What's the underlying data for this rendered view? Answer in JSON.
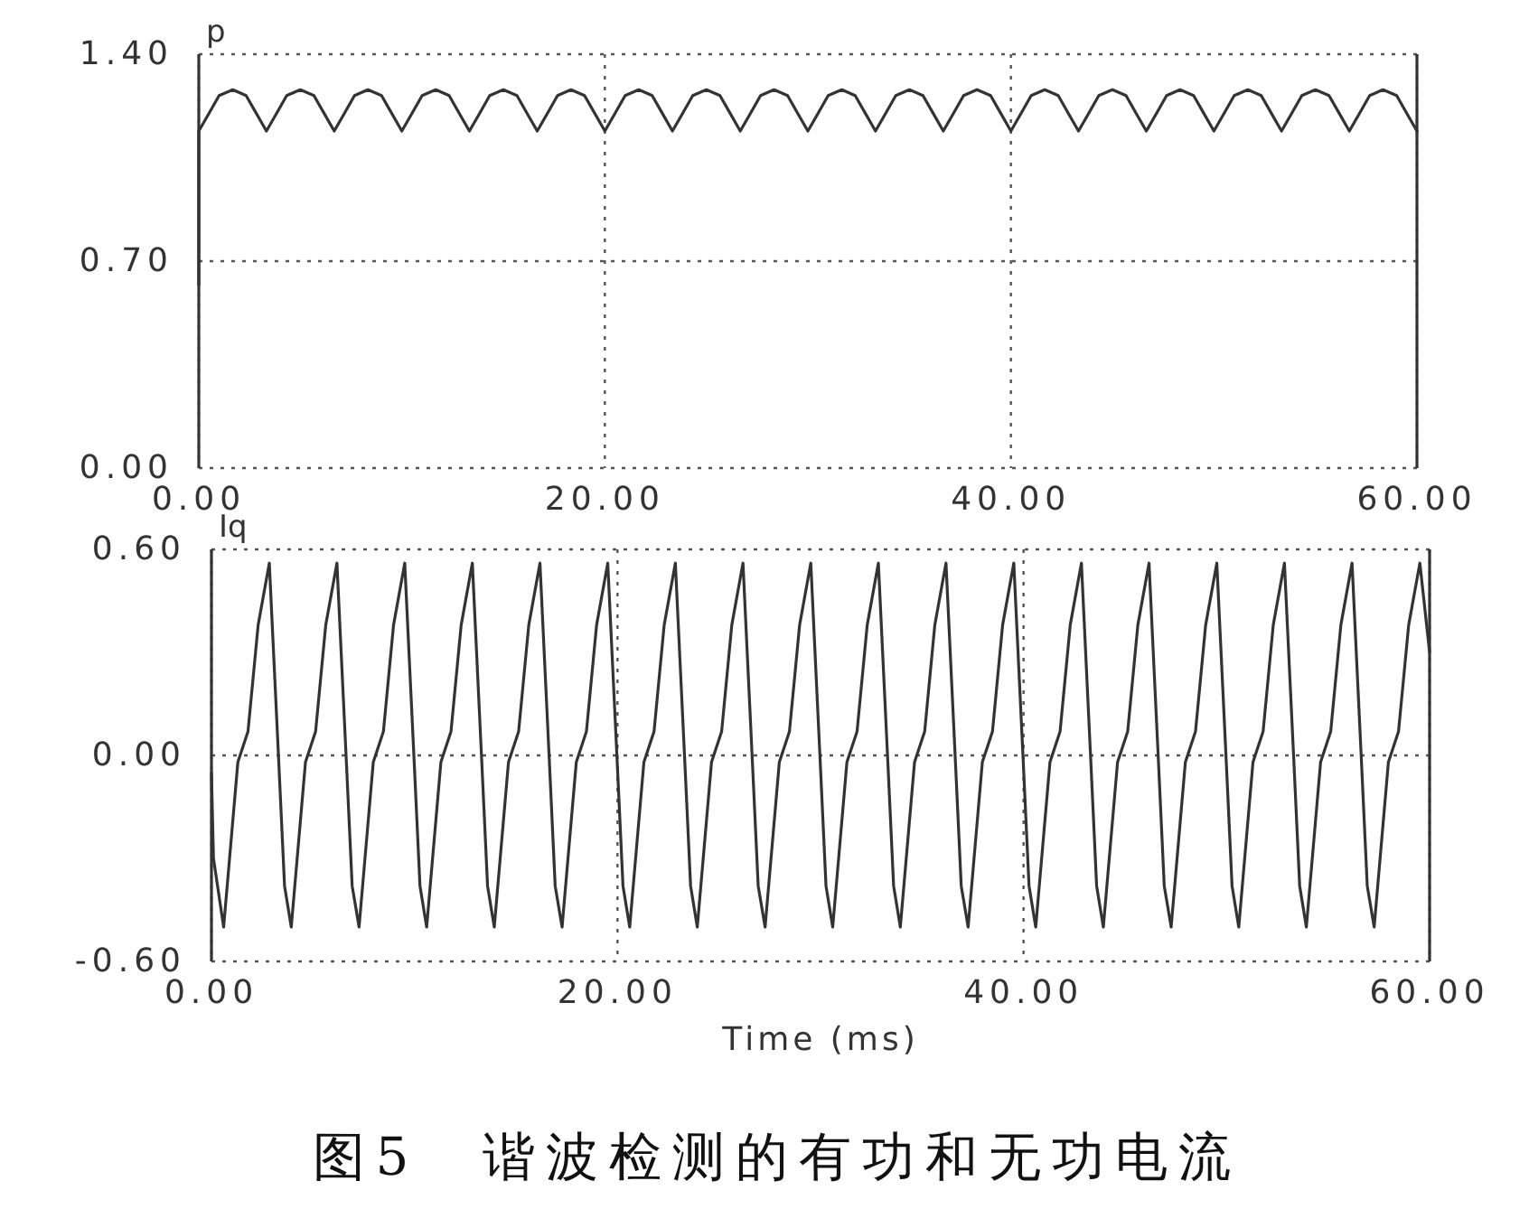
{
  "chart_data": [
    {
      "type": "line",
      "ylabel": "p",
      "color": "#333333",
      "grid": true,
      "xlim": [
        0,
        60
      ],
      "ylim": [
        0,
        1.4
      ],
      "xticks": [
        {
          "value": 0,
          "label": "0.00"
        },
        {
          "value": 20,
          "label": "20.00"
        },
        {
          "value": 40,
          "label": "40.00"
        },
        {
          "value": 60,
          "label": "60.00"
        }
      ],
      "yticks": [
        {
          "value": 0,
          "label": "0.00"
        },
        {
          "value": 0.7,
          "label": "0.70"
        },
        {
          "value": 1.4,
          "label": "1.40"
        }
      ],
      "x": [
        0,
        0,
        0.5,
        1,
        1.67,
        2.33,
        2.83,
        3.33,
        3.83,
        4.33,
        5,
        5.67,
        6.17,
        6.67,
        7.17,
        7.67,
        8.33,
        9,
        9.5,
        10,
        10.5,
        11,
        11.67,
        12.33,
        12.83,
        13.33,
        13.83,
        14.33,
        15,
        15.67,
        16.17,
        16.67,
        17.17,
        17.67,
        18.33,
        19,
        19.5,
        20,
        20.5,
        21,
        21.67,
        22.33,
        22.83,
        23.33,
        23.83,
        24.33,
        25,
        25.67,
        26.17,
        26.67,
        27.17,
        27.67,
        28.33,
        29,
        29.5,
        30,
        30.5,
        31,
        31.67,
        32.33,
        32.83,
        33.33,
        33.83,
        34.33,
        35,
        35.67,
        36.17,
        36.67,
        37.17,
        37.67,
        38.33,
        39,
        39.5,
        40,
        40.5,
        41,
        41.67,
        42.33,
        42.83,
        43.33,
        43.83,
        44.33,
        45,
        45.67,
        46.17,
        46.67,
        47.17,
        47.67,
        48.33,
        49,
        49.5,
        50,
        50.5,
        51,
        51.67,
        52.33,
        52.83,
        53.33,
        53.83,
        54.33,
        55,
        55.67,
        56.17,
        56.67,
        57.17,
        57.67,
        58.33,
        59,
        59.5,
        60
      ],
      "values": [
        0.62,
        1.14,
        1.2,
        1.26,
        1.28,
        1.26,
        1.2,
        1.14,
        1.2,
        1.26,
        1.28,
        1.26,
        1.2,
        1.14,
        1.2,
        1.26,
        1.28,
        1.26,
        1.2,
        1.14,
        1.2,
        1.26,
        1.28,
        1.26,
        1.2,
        1.14,
        1.2,
        1.26,
        1.28,
        1.26,
        1.2,
        1.14,
        1.2,
        1.26,
        1.28,
        1.26,
        1.2,
        1.14,
        1.2,
        1.26,
        1.28,
        1.26,
        1.2,
        1.14,
        1.2,
        1.26,
        1.28,
        1.26,
        1.2,
        1.14,
        1.2,
        1.26,
        1.28,
        1.26,
        1.2,
        1.14,
        1.2,
        1.26,
        1.28,
        1.26,
        1.2,
        1.14,
        1.2,
        1.26,
        1.28,
        1.26,
        1.2,
        1.14,
        1.2,
        1.26,
        1.28,
        1.26,
        1.2,
        1.14,
        1.2,
        1.26,
        1.28,
        1.26,
        1.2,
        1.14,
        1.2,
        1.26,
        1.28,
        1.26,
        1.2,
        1.14,
        1.2,
        1.26,
        1.28,
        1.26,
        1.2,
        1.14,
        1.2,
        1.26,
        1.28,
        1.26,
        1.2,
        1.14,
        1.2,
        1.26,
        1.28,
        1.26,
        1.2,
        1.14,
        1.2,
        1.26,
        1.28,
        1.26,
        1.2,
        1.14
      ]
    },
    {
      "type": "line",
      "ylabel": "Iq",
      "xlabel": "Time (ms)",
      "color": "#333333",
      "grid": true,
      "xlim": [
        0,
        60
      ],
      "ylim": [
        -0.6,
        0.6
      ],
      "xticks": [
        {
          "value": 0,
          "label": "0.00"
        },
        {
          "value": 20,
          "label": "20.00"
        },
        {
          "value": 40,
          "label": "40.00"
        },
        {
          "value": 60,
          "label": "60.00"
        }
      ],
      "yticks": [
        {
          "value": -0.6,
          "label": "-0.60"
        },
        {
          "value": 0,
          "label": "0.00"
        },
        {
          "value": 0.6,
          "label": "0.60"
        }
      ],
      "x": [
        0,
        0.1,
        0.6,
        1.3,
        1.8,
        2.3,
        2.85,
        3.3,
        3.6,
        3.93,
        4.63,
        5.13,
        5.63,
        6.18,
        6.63,
        6.93,
        7.27,
        7.97,
        8.47,
        8.97,
        9.52,
        9.97,
        10.27,
        10.6,
        11.3,
        11.8,
        12.3,
        12.85,
        13.3,
        13.6,
        13.93,
        14.63,
        15.13,
        15.63,
        16.18,
        16.63,
        16.93,
        17.27,
        17.97,
        18.47,
        18.97,
        19.52,
        19.97,
        20.27,
        20.6,
        21.3,
        21.8,
        22.3,
        22.85,
        23.3,
        23.6,
        23.93,
        24.63,
        25.13,
        25.63,
        26.18,
        26.63,
        26.93,
        27.27,
        27.97,
        28.47,
        28.97,
        29.52,
        29.97,
        30.27,
        30.6,
        31.3,
        31.8,
        32.3,
        32.85,
        33.3,
        33.6,
        33.93,
        34.63,
        35.13,
        35.63,
        36.18,
        36.63,
        36.93,
        37.27,
        37.97,
        38.47,
        38.97,
        39.52,
        39.97,
        40.27,
        40.6,
        41.3,
        41.8,
        42.3,
        42.85,
        43.3,
        43.6,
        43.93,
        44.63,
        45.13,
        45.63,
        46.18,
        46.63,
        46.93,
        47.27,
        47.97,
        48.47,
        48.97,
        49.52,
        49.97,
        50.27,
        50.6,
        51.3,
        51.8,
        52.3,
        52.85,
        53.3,
        53.6,
        53.93,
        54.63,
        55.13,
        55.63,
        56.18,
        56.63,
        56.93,
        57.27,
        57.97,
        58.47,
        58.97,
        59.52,
        60
      ],
      "values": [
        -0.05,
        -0.3,
        -0.5,
        -0.02,
        0.07,
        0.38,
        0.56,
        0,
        -0.38,
        -0.5,
        -0.02,
        0.07,
        0.38,
        0.56,
        0,
        -0.38,
        -0.5,
        -0.02,
        0.07,
        0.38,
        0.56,
        0,
        -0.38,
        -0.5,
        -0.02,
        0.07,
        0.38,
        0.56,
        0,
        -0.38,
        -0.5,
        -0.02,
        0.07,
        0.38,
        0.56,
        0,
        -0.38,
        -0.5,
        -0.02,
        0.07,
        0.38,
        0.56,
        0,
        -0.38,
        -0.5,
        -0.02,
        0.07,
        0.38,
        0.56,
        0,
        -0.38,
        -0.5,
        -0.02,
        0.07,
        0.38,
        0.56,
        0,
        -0.38,
        -0.5,
        -0.02,
        0.07,
        0.38,
        0.56,
        0,
        -0.38,
        -0.5,
        -0.02,
        0.07,
        0.38,
        0.56,
        0,
        -0.38,
        -0.5,
        -0.02,
        0.07,
        0.38,
        0.56,
        0,
        -0.38,
        -0.5,
        -0.02,
        0.07,
        0.38,
        0.56,
        0,
        -0.38,
        -0.5,
        -0.02,
        0.07,
        0.38,
        0.56,
        0,
        -0.38,
        -0.5,
        -0.02,
        0.07,
        0.38,
        0.56,
        0,
        -0.38,
        -0.5,
        -0.02,
        0.07,
        0.38,
        0.56,
        0,
        -0.38,
        -0.5,
        -0.02,
        0.07,
        0.38,
        0.56,
        0,
        -0.38,
        -0.5,
        -0.02,
        0.07,
        0.38,
        0.56,
        0,
        -0.38,
        -0.5,
        -0.02,
        0.07,
        0.38,
        0.56,
        0.3
      ],
      "annotations": [
        "图5　谐波检测的有功和无功电流"
      ]
    }
  ]
}
